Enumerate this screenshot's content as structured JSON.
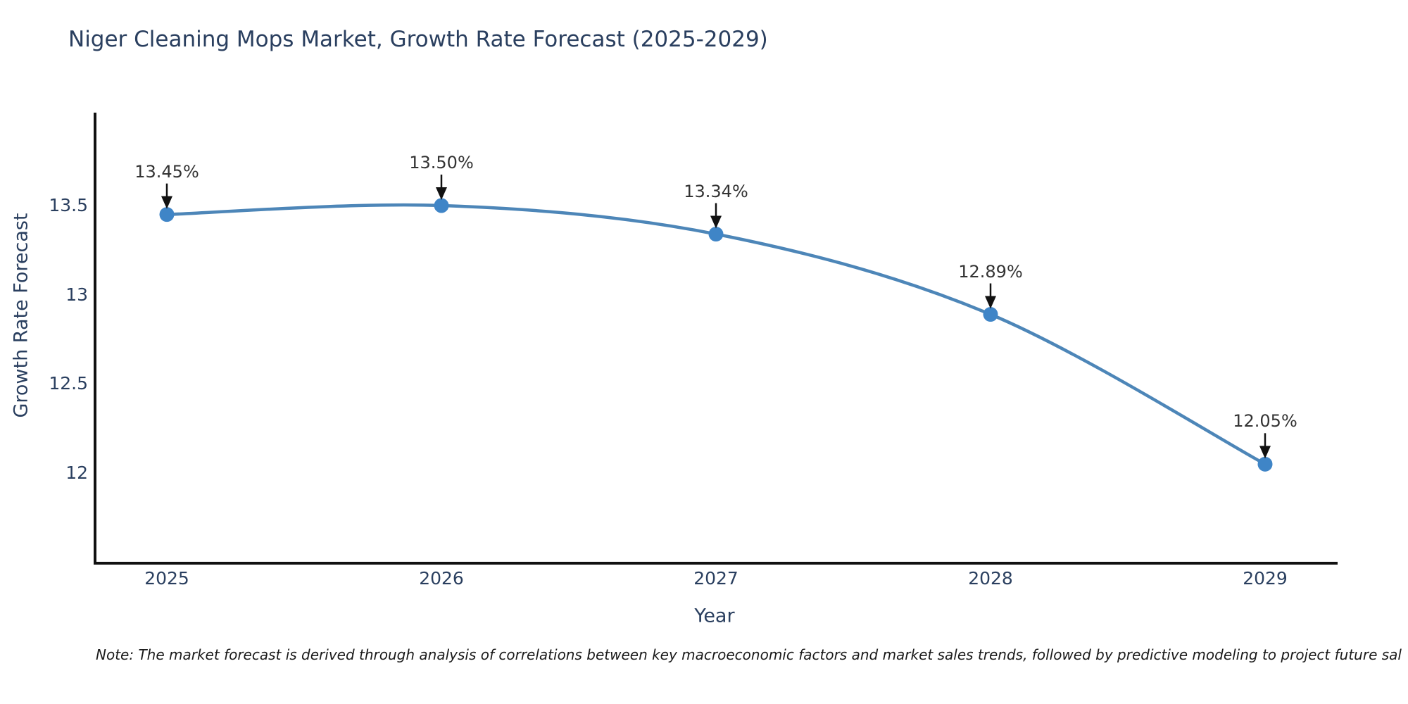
{
  "title": "Niger Cleaning Mops Market, Growth Rate Forecast (2025-2029)",
  "note": "Note: The market forecast is derived through analysis of correlations between key macroeconomic factors and market sales trends, followed by predictive modeling to project future sal",
  "chart_data": {
    "type": "line",
    "title": "Niger Cleaning Mops Market, Growth Rate Forecast (2025-2029)",
    "xlabel": "Year",
    "ylabel": "Growth Rate Forecast",
    "x": [
      2025,
      2026,
      2027,
      2028,
      2029
    ],
    "values": [
      13.45,
      13.5,
      13.34,
      12.89,
      12.05
    ],
    "point_labels": [
      "13.45%",
      "13.50%",
      "13.34%",
      "12.89%",
      "12.05%"
    ],
    "xtick_labels": [
      "2025",
      "2026",
      "2027",
      "2028",
      "2029"
    ],
    "yticks": [
      12,
      12.5,
      13,
      13.5
    ],
    "ytick_labels": [
      "12",
      "12.5",
      "13",
      "13.5"
    ],
    "ylim": [
      11.5,
      14.0
    ],
    "grid": false,
    "legend": false,
    "curve_style": "spline",
    "annotation_arrows": true,
    "line_color": "#4d86b8",
    "marker_color": "#3f85c7",
    "axis_color": "#111111",
    "text_color": "#2a3f5f",
    "annotation_color": "#333333"
  }
}
